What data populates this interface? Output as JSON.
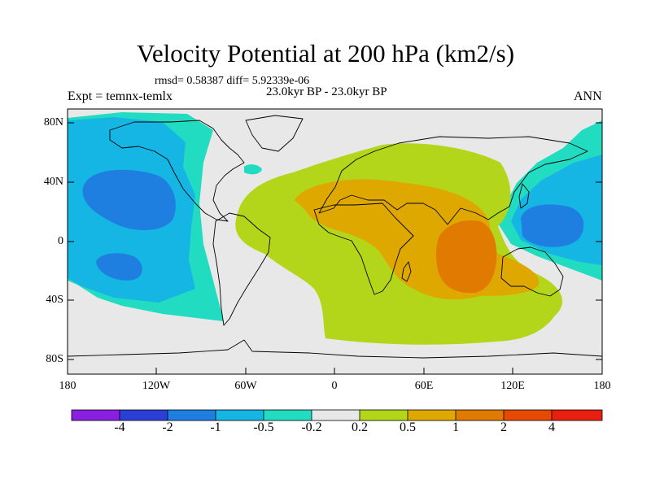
{
  "title": "Velocity Potential at 200 hPa (km2/s)",
  "stats_line": "rmsd= 0.58387 diff= 5.92339e-06",
  "period_line": "23.0kyr BP - 23.0kyr BP",
  "left_label": "Expt = temnx-temlx",
  "right_label": "ANN",
  "latitude_ticks": [
    "80N",
    "40N",
    "0",
    "40S",
    "80S"
  ],
  "longitude_ticks": [
    "180",
    "120W",
    "60W",
    "0",
    "60E",
    "120E",
    "180"
  ],
  "colorbar": {
    "colors": [
      "#8a1fe0",
      "#2b3fd6",
      "#1e7fe0",
      "#16b6e4",
      "#22dcc2",
      "#e8e8e8",
      "#b4d61a",
      "#dfa800",
      "#e07a00",
      "#e64a00",
      "#e81e0e"
    ],
    "labels": [
      "-4",
      "-2",
      "-1",
      "-0.5",
      "-0.2",
      "0.2",
      "0.5",
      "1",
      "2",
      "4"
    ]
  },
  "fill_colors": {
    "neutral": "#e8e8e8",
    "neg_02": "#22dcc2",
    "neg_05": "#16b6e4",
    "neg_1": "#1e7fe0",
    "pos_02": "#b4d61a",
    "pos_05": "#dfa800",
    "pos_1": "#e07a00"
  }
}
